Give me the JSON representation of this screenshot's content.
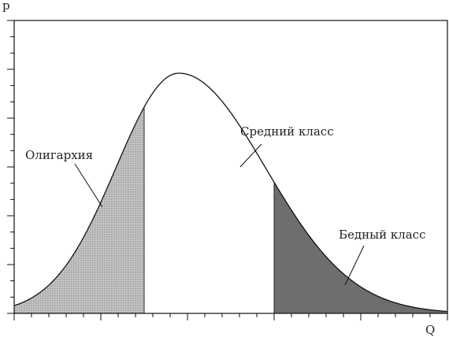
{
  "chart_data": {
    "type": "area",
    "title": "",
    "xlabel": "Q",
    "ylabel": "p",
    "xlim": [
      0,
      1
    ],
    "ylim": [
      0,
      1
    ],
    "grid": false,
    "legend": "none",
    "curve": {
      "peak_x": 0.38,
      "peak_y": 0.82,
      "spread_left": 0.145,
      "spread_right": 0.2
    },
    "regions": [
      {
        "name": "Олигархия",
        "from": 0.0,
        "to": 0.3,
        "fill": "#b4b4b4",
        "pattern": "dotted"
      },
      {
        "name": "Средний класс",
        "from": 0.3,
        "to": 0.6,
        "fill": "#ffffff",
        "pattern": "none"
      },
      {
        "name": "Бедный класс",
        "from": 0.6,
        "to": 1.0,
        "fill": "#6e6e6e",
        "pattern": "solid"
      }
    ],
    "x_ticks": 25,
    "y_ticks": 18
  }
}
